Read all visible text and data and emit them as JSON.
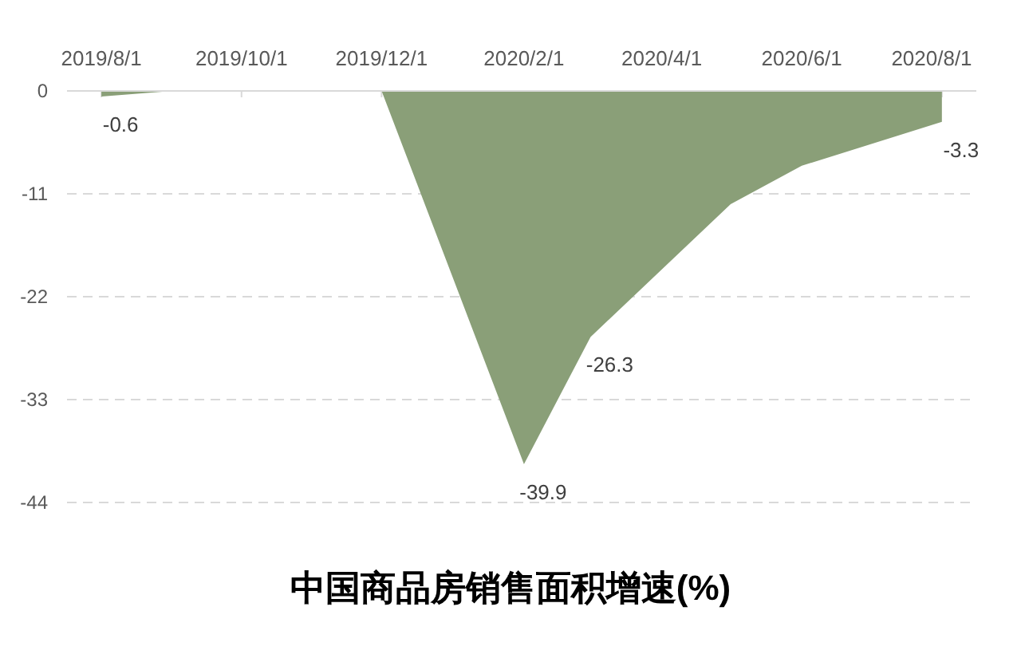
{
  "chart_data": {
    "type": "area",
    "title": "中国商品房销售面积增速(%)",
    "x": [
      "2019-08",
      "2019-09",
      "2019-10",
      "2019-11",
      "2019-12",
      "2020-02",
      "2020-03",
      "2020-05",
      "2020-06",
      "2020-08"
    ],
    "values": [
      -0.6,
      0,
      0,
      0,
      0,
      -39.9,
      -26.3,
      -12.1,
      -8,
      -3.3
    ],
    "value_labels": [
      "-0.6",
      null,
      null,
      null,
      null,
      "-39.9",
      "-26.3",
      null,
      null,
      "-3.3"
    ],
    "color": "#8a9f78",
    "xlim": [
      "2019-07-17",
      "2020-08-16"
    ],
    "xticks": [
      {
        "value": "2019-08-01",
        "label": "2019/8/1"
      },
      {
        "value": "2019-10-01",
        "label": "2019/10/1"
      },
      {
        "value": "2019-12-01",
        "label": "2019/12/1"
      },
      {
        "value": "2020-02-01",
        "label": "2020/2/1"
      },
      {
        "value": "2020-04-01",
        "label": "2020/4/1"
      },
      {
        "value": "2020-06-01",
        "label": "2020/6/1"
      },
      {
        "value": "2020-08-01",
        "label": "2020/8/1"
      }
    ],
    "ylim": [
      -44,
      0
    ],
    "yticks": [
      0,
      -11,
      -22,
      -33,
      -44
    ],
    "grid": "y"
  }
}
